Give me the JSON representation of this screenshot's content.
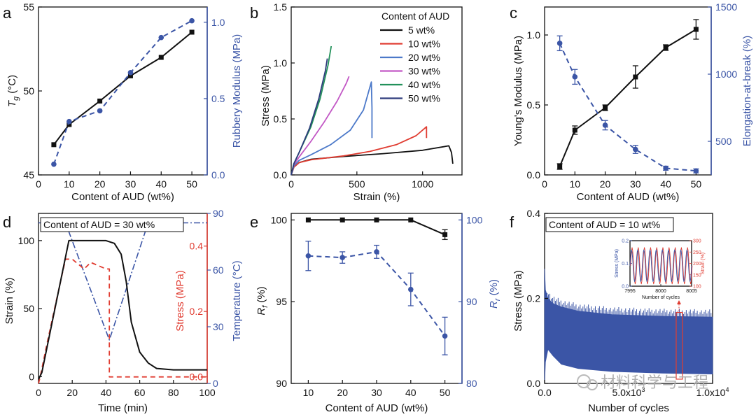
{
  "colors": {
    "black": "#111111",
    "blue": "#3b55a6",
    "red": "#e03c31",
    "green": "#22915a",
    "magenta": "#c257c5",
    "navy": "#2e3b7c",
    "lightblue": "#4c79c9"
  },
  "chart_data": [
    {
      "panel": "a",
      "type": "line",
      "x": [
        5,
        10,
        20,
        30,
        40,
        50
      ],
      "xlabel": "Content of AUD (wt%)",
      "ylabel": "T_g (°C)",
      "y2label": "Rubbery Modulus (MPa)",
      "xlim": [
        0,
        55
      ],
      "ylim": [
        45,
        55
      ],
      "y2lim": [
        0,
        1.1
      ],
      "xticks": [
        "0",
        "10",
        "20",
        "30",
        "40",
        "50"
      ],
      "yticks": [
        "45",
        "50",
        "55"
      ],
      "y2ticks": [
        "0.0",
        "0.5",
        "1.0"
      ],
      "series": [
        {
          "axis": "left",
          "color": "black",
          "values": [
            46.8,
            48.0,
            49.4,
            50.9,
            52.0,
            53.5
          ]
        },
        {
          "axis": "right",
          "color": "blue",
          "values": [
            0.07,
            0.35,
            0.42,
            0.67,
            0.9,
            1.01
          ]
        }
      ]
    },
    {
      "panel": "b",
      "type": "line",
      "xlabel": "Strain (%)",
      "ylabel": "Stress (MPa)",
      "xlim": [
        0,
        1300
      ],
      "ylim": [
        0,
        1.5
      ],
      "xticks": [
        "0",
        "500",
        "1000"
      ],
      "yticks": [
        "0.0",
        "0.5",
        "1.0",
        "1.5"
      ],
      "legend_title": "Content of AUD",
      "legend_position": "top-right",
      "series": [
        {
          "name": "5 wt%",
          "color": "black",
          "x": [
            0,
            20,
            60,
            150,
            400,
            700,
            1000,
            1200,
            1220,
            1230
          ],
          "y": [
            0,
            0.07,
            0.11,
            0.14,
            0.165,
            0.19,
            0.22,
            0.26,
            0.2,
            0.1
          ]
        },
        {
          "name": "10 wt%",
          "color": "red",
          "x": [
            0,
            20,
            60,
            150,
            400,
            600,
            800,
            950,
            1030,
            1030
          ],
          "y": [
            0,
            0.07,
            0.11,
            0.135,
            0.17,
            0.21,
            0.27,
            0.35,
            0.43,
            0.33
          ]
        },
        {
          "name": "20 wt%",
          "color": "lightblue",
          "x": [
            0,
            20,
            60,
            150,
            300,
            450,
            550,
            610,
            615,
            615
          ],
          "y": [
            0,
            0.08,
            0.13,
            0.18,
            0.27,
            0.4,
            0.58,
            0.83,
            0.6,
            0.33
          ]
        },
        {
          "name": "30 wt%",
          "color": "magenta",
          "x": [
            0,
            20,
            60,
            150,
            250,
            350,
            420,
            440
          ],
          "y": [
            0,
            0.09,
            0.16,
            0.3,
            0.47,
            0.66,
            0.82,
            0.88
          ]
        },
        {
          "name": "40 wt%",
          "color": "green",
          "x": [
            0,
            20,
            60,
            150,
            220,
            280,
            305
          ],
          "y": [
            0,
            0.1,
            0.2,
            0.43,
            0.68,
            0.98,
            1.15
          ]
        },
        {
          "name": "50 wt%",
          "color": "navy",
          "x": [
            0,
            20,
            60,
            140,
            210,
            260,
            275
          ],
          "y": [
            0,
            0.1,
            0.2,
            0.42,
            0.68,
            0.93,
            1.04
          ]
        }
      ]
    },
    {
      "panel": "c",
      "type": "line",
      "x": [
        5,
        10,
        20,
        30,
        40,
        50
      ],
      "xlabel": "Content of AUD (wt%)",
      "ylabel": "Young's Modulus (MPa)",
      "y2label": "Elongation-at-break (%)",
      "xlim": [
        0,
        55
      ],
      "ylim": [
        0,
        1.2
      ],
      "y2lim": [
        250,
        1500
      ],
      "xticks": [
        "0",
        "10",
        "20",
        "30",
        "40",
        "50"
      ],
      "yticks": [
        "0.0",
        "0.5",
        "1.0"
      ],
      "y2ticks": [
        "500",
        "1000",
        "1500"
      ],
      "series": [
        {
          "axis": "left",
          "color": "black",
          "values": [
            0.06,
            0.32,
            0.48,
            0.7,
            0.91,
            1.04
          ],
          "errors": [
            0.02,
            0.03,
            0.02,
            0.08,
            0.02,
            0.07
          ]
        },
        {
          "axis": "right",
          "color": "blue",
          "values": [
            1230,
            980,
            620,
            440,
            300,
            280
          ],
          "errors": [
            55,
            55,
            35,
            30,
            15,
            15
          ]
        }
      ]
    },
    {
      "panel": "d",
      "type": "line",
      "xlabel": "Time (min)",
      "ylabel": "Strain (%)",
      "y2label": "Stress (MPa)",
      "y3label": "Temperature (°C)",
      "annotation": "Content of AUD = 30 wt%",
      "xlim": [
        0,
        100
      ],
      "ylim": [
        -5,
        120
      ],
      "y2lim": [
        -0.02,
        0.5
      ],
      "y3lim": [
        0,
        90
      ],
      "xticks": [
        "0",
        "20",
        "40",
        "60",
        "80",
        "100"
      ],
      "yticks": [
        "0",
        "50",
        "100"
      ],
      "y2ticks": [
        "0.0",
        "0.2",
        "0.4"
      ],
      "y3ticks": [
        "0",
        "30",
        "60",
        "90"
      ],
      "series": [
        {
          "axis": "left",
          "color": "black",
          "x": [
            0,
            2,
            18,
            40,
            45,
            49,
            52,
            55,
            60,
            65,
            70,
            80,
            100
          ],
          "y": [
            -2,
            3,
            100,
            100,
            98,
            90,
            70,
            40,
            18,
            10,
            6,
            5,
            5
          ]
        },
        {
          "axis": "right",
          "color": "red",
          "x": [
            0,
            1,
            5,
            10,
            16,
            20,
            27,
            31,
            40,
            42,
            42,
            100
          ],
          "y": [
            -0.02,
            0,
            0.1,
            0.22,
            0.36,
            0.36,
            0.33,
            0.35,
            0.33,
            0.33,
            0,
            0
          ]
        },
        {
          "axis": "right2",
          "color": "blue",
          "x": [
            0,
            16,
            42,
            65,
            100
          ],
          "y": [
            85,
            85,
            23,
            85,
            85
          ]
        }
      ]
    },
    {
      "panel": "e",
      "type": "line",
      "x": [
        10,
        20,
        30,
        40,
        50
      ],
      "xlabel": "Content of AUD (wt%)",
      "ylabel": "R_f (%)",
      "y2label": "R_r (%)",
      "xlim": [
        5,
        55
      ],
      "ylim": [
        90,
        100.4
      ],
      "y2lim": [
        80,
        100.8
      ],
      "xticks": [
        "10",
        "20",
        "30",
        "40",
        "50"
      ],
      "yticks": [
        "90",
        "95",
        "100"
      ],
      "y2ticks": [
        "80",
        "90",
        "100"
      ],
      "series": [
        {
          "axis": "left",
          "color": "black",
          "values": [
            100,
            100,
            100,
            100,
            99.1
          ],
          "errors": [
            0,
            0,
            0,
            0,
            0.3
          ]
        },
        {
          "axis": "right",
          "color": "blue",
          "values": [
            95.6,
            95.4,
            96.1,
            91.5,
            85.8
          ],
          "errors": [
            1.8,
            0.7,
            0.8,
            2.0,
            2.3
          ]
        }
      ]
    },
    {
      "panel": "f",
      "type": "area",
      "xlabel": "Number of cycles",
      "ylabel": "Stress (MPa)",
      "annotation": "Content of AUD = 10 wt%",
      "xlim": [
        0,
        10000
      ],
      "ylim": [
        0,
        0.4
      ],
      "xticks": [
        "0.0",
        "5.0x10^3",
        "1.0x10^4"
      ],
      "yticks": [
        "0.0",
        "0.2",
        "0.4"
      ],
      "envelope": {
        "x": [
          0,
          50,
          200,
          500,
          1000,
          2000,
          4000,
          7000,
          10000
        ],
        "upper": [
          0.27,
          0.22,
          0.2,
          0.188,
          0.18,
          0.17,
          0.162,
          0.158,
          0.156
        ],
        "lower": [
          0.0,
          0.05,
          0.08,
          0.065,
          0.045,
          0.035,
          0.028,
          0.024,
          0.022
        ]
      },
      "inset": {
        "xlabel": "Number of cycles",
        "ylabel": "Stress (MPa)",
        "y2label": "Strain (%)",
        "xlim": [
          7995,
          8005
        ],
        "ylim": [
          0,
          0.2
        ],
        "y2lim": [
          100,
          300
        ],
        "xticks": [
          "7995",
          "8000",
          "8005"
        ],
        "yticks": [
          "0.0",
          "0.1",
          "0.2"
        ],
        "y2ticks": [
          "100",
          "150",
          "200",
          "250",
          "300"
        ],
        "cycles": 10,
        "stress_range": [
          0.02,
          0.16
        ],
        "strain_range": [
          110,
          270
        ]
      }
    }
  ],
  "panel_labels": [
    "a",
    "b",
    "c",
    "d",
    "e",
    "f"
  ],
  "watermark": "材料科学与工程"
}
